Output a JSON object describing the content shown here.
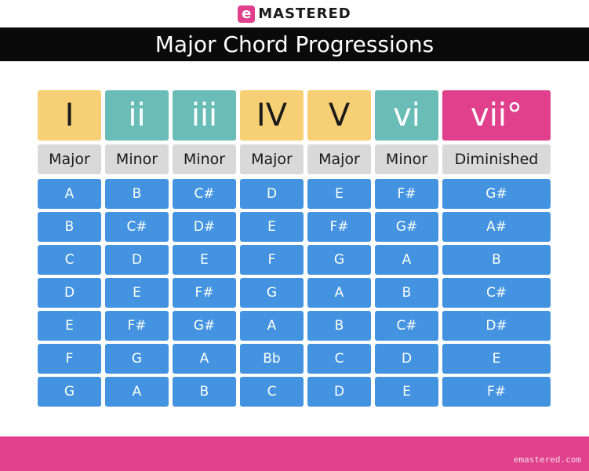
{
  "header": {
    "logo_letter": "e",
    "logo_text": "MASTERED",
    "title": "Major Chord Progressions"
  },
  "colors": {
    "major": "#f7cf74",
    "minor": "#69bdb6",
    "diminished": "#e0408c",
    "note": "#4393e0",
    "quality": "#d9d9d9"
  },
  "columns": [
    {
      "numeral": "I",
      "quality": "Major",
      "kind": "major",
      "notes": [
        "A",
        "B",
        "C",
        "D",
        "E",
        "F",
        "G"
      ]
    },
    {
      "numeral": "ii",
      "quality": "Minor",
      "kind": "minor",
      "notes": [
        "B",
        "C#",
        "D",
        "E",
        "F#",
        "G",
        "A"
      ]
    },
    {
      "numeral": "iii",
      "quality": "Minor",
      "kind": "minor",
      "notes": [
        "C#",
        "D#",
        "E",
        "F#",
        "G#",
        "A",
        "B"
      ]
    },
    {
      "numeral": "IV",
      "quality": "Major",
      "kind": "major",
      "notes": [
        "D",
        "E",
        "F",
        "G",
        "A",
        "Bb",
        "C"
      ]
    },
    {
      "numeral": "V",
      "quality": "Major",
      "kind": "major",
      "notes": [
        "E",
        "F#",
        "G",
        "A",
        "B",
        "C",
        "D"
      ]
    },
    {
      "numeral": "vi",
      "quality": "Minor",
      "kind": "minor",
      "notes": [
        "F#",
        "G#",
        "A",
        "B",
        "C#",
        "D",
        "E"
      ]
    },
    {
      "numeral": "vii°",
      "quality": "Diminished",
      "kind": "diminished",
      "notes": [
        "G#",
        "A#",
        "B",
        "C#",
        "D#",
        "E",
        "F#"
      ]
    }
  ],
  "footer": {
    "watermark": "emastered.com"
  }
}
